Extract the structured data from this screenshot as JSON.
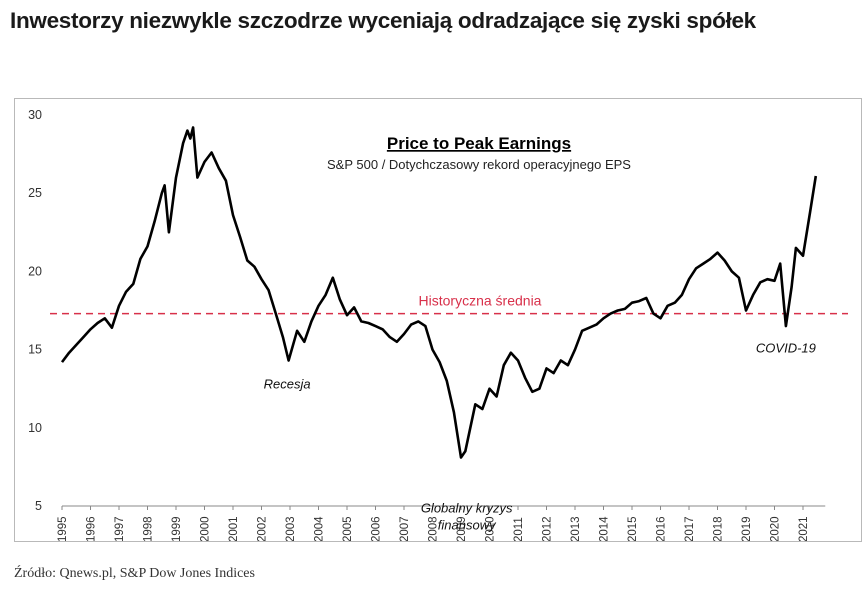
{
  "headline": "Inwestorzy niezwykle szczodrze wyceniają odradzające się zyski spółek",
  "source": "Źródło: Qnews.pl, S&P Dow Jones Indices",
  "colors": {
    "line": "#000000",
    "average_line": "#d8304a",
    "frame": "#b9b9b9"
  },
  "chart_data": {
    "type": "line",
    "title": "Price to Peak Earnings",
    "subtitle": "S&P 500 / Dotychczasowy rekord operacyjnego EPS",
    "xlabel": "",
    "ylabel": "",
    "ylim": [
      5,
      30
    ],
    "yticks": [
      5,
      10,
      15,
      20,
      25,
      30
    ],
    "xlim": [
      1995,
      2021.5
    ],
    "xticks": [
      "1995",
      "1996",
      "1997",
      "1998",
      "1999",
      "2000",
      "2001",
      "2002",
      "2003",
      "2004",
      "2005",
      "2006",
      "2007",
      "2008",
      "2009",
      "2010",
      "2011",
      "2012",
      "2013",
      "2014",
      "2015",
      "2016",
      "2017",
      "2018",
      "2019",
      "2020",
      "2021"
    ],
    "grid": false,
    "average": {
      "label": "Historyczna średnia",
      "value": 17.3
    },
    "annotations": [
      {
        "text": "Recesja",
        "x": 2002.9,
        "y": 12.5
      },
      {
        "text": "Globalny kryzys finansowy",
        "x": 2009.2,
        "y": 4.6
      },
      {
        "text": "COVID-19",
        "x": 2020.4,
        "y": 14.8
      }
    ],
    "series": [
      {
        "x": [
          1995.0,
          1995.25,
          1995.5,
          1995.75,
          1996.0,
          1996.25,
          1996.5,
          1996.75,
          1997.0,
          1997.25,
          1997.5,
          1997.75,
          1998.0,
          1998.25,
          1998.5,
          1998.6,
          1998.75,
          1999.0,
          1999.25,
          1999.4,
          1999.5,
          1999.6,
          1999.75,
          2000.0,
          2000.25,
          2000.5,
          2000.75,
          2001.0,
          2001.25,
          2001.5,
          2001.75,
          2002.0,
          2002.25,
          2002.5,
          2002.75,
          2002.95,
          2003.25,
          2003.5,
          2003.75,
          2004.0,
          2004.25,
          2004.5,
          2004.75,
          2005.0,
          2005.25,
          2005.5,
          2005.75,
          2006.0,
          2006.25,
          2006.5,
          2006.75,
          2007.0,
          2007.25,
          2007.5,
          2007.75,
          2008.0,
          2008.25,
          2008.5,
          2008.75,
          2009.0,
          2009.15,
          2009.5,
          2009.75,
          2010.0,
          2010.25,
          2010.5,
          2010.75,
          2011.0,
          2011.25,
          2011.5,
          2011.75,
          2012.0,
          2012.25,
          2012.5,
          2012.75,
          2013.0,
          2013.25,
          2013.5,
          2013.75,
          2014.0,
          2014.25,
          2014.5,
          2014.75,
          2015.0,
          2015.25,
          2015.5,
          2015.75,
          2016.0,
          2016.25,
          2016.5,
          2016.75,
          2017.0,
          2017.25,
          2017.5,
          2017.75,
          2018.0,
          2018.25,
          2018.5,
          2018.75,
          2019.0,
          2019.25,
          2019.5,
          2019.75,
          2020.0,
          2020.2,
          2020.4,
          2020.6,
          2020.75,
          2021.0,
          2021.25,
          2021.45
        ],
        "values": [
          14.2,
          14.8,
          15.3,
          15.8,
          16.3,
          16.7,
          17.0,
          16.4,
          17.8,
          18.7,
          19.2,
          20.8,
          21.6,
          23.2,
          25.0,
          25.5,
          22.5,
          26.0,
          28.2,
          29.0,
          28.5,
          29.2,
          26.0,
          27.0,
          27.6,
          26.6,
          25.8,
          23.6,
          22.2,
          20.7,
          20.3,
          19.5,
          18.8,
          17.3,
          15.8,
          14.3,
          16.2,
          15.5,
          16.8,
          17.8,
          18.5,
          19.6,
          18.2,
          17.2,
          17.7,
          16.8,
          16.7,
          16.5,
          16.3,
          15.8,
          15.5,
          16.0,
          16.6,
          16.8,
          16.5,
          15.0,
          14.2,
          13.0,
          11.0,
          8.1,
          8.5,
          11.5,
          11.2,
          12.5,
          12.0,
          14.0,
          14.8,
          14.3,
          13.2,
          12.3,
          12.5,
          13.8,
          13.5,
          14.3,
          14.0,
          15.0,
          16.2,
          16.4,
          16.6,
          17.0,
          17.3,
          17.5,
          17.6,
          18.0,
          18.1,
          18.3,
          17.3,
          17.0,
          17.8,
          18.0,
          18.5,
          19.5,
          20.2,
          20.5,
          20.8,
          21.2,
          20.7,
          20.0,
          19.6,
          17.5,
          18.5,
          19.3,
          19.5,
          19.4,
          20.5,
          16.5,
          19.0,
          21.5,
          21.0,
          23.8,
          26.1
        ]
      }
    ]
  }
}
